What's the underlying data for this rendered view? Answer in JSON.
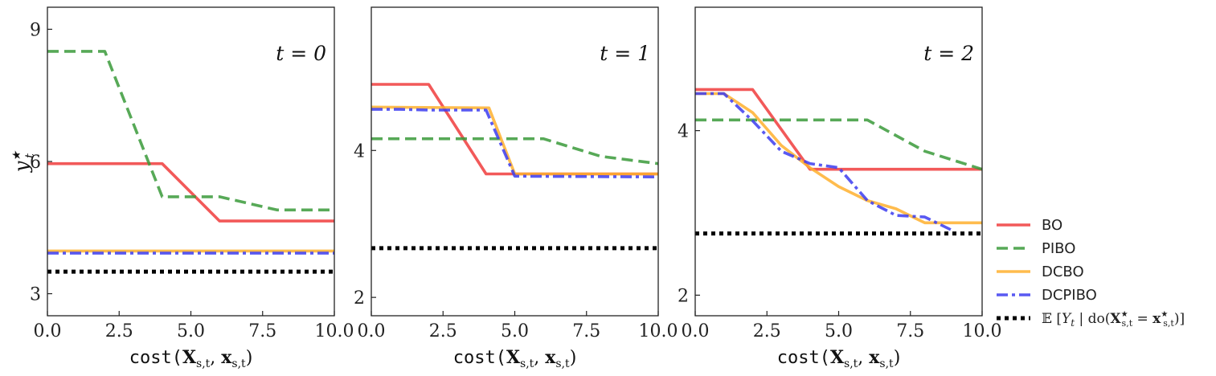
{
  "chart_data": [
    {
      "type": "line",
      "panel_label": "t = 0",
      "ylabel": "y*_t",
      "xlabel": "cost(X_{s,t}, x_{s,t})",
      "xlim": [
        0,
        10
      ],
      "ylim": [
        2.5,
        9.5
      ],
      "xticks": [
        "0.0",
        "2.5",
        "5.0",
        "7.5",
        "10.0"
      ],
      "yticks": [
        "3",
        "6",
        "9"
      ],
      "ytick_values": [
        3,
        6,
        9
      ],
      "series": [
        {
          "name": "BO",
          "points": [
            [
              0,
              5.95
            ],
            [
              4,
              5.95
            ],
            [
              6,
              4.65
            ],
            [
              10,
              4.65
            ]
          ]
        },
        {
          "name": "PIBO",
          "points": [
            [
              0,
              8.5
            ],
            [
              2,
              8.5
            ],
            [
              4,
              5.2
            ],
            [
              6,
              5.2
            ],
            [
              8,
              4.9
            ],
            [
              10,
              4.9
            ]
          ]
        },
        {
          "name": "DCBO",
          "points": [
            [
              0,
              3.97
            ],
            [
              10,
              3.97
            ]
          ]
        },
        {
          "name": "DCPIBO",
          "points": [
            [
              0,
              3.92
            ],
            [
              10,
              3.92
            ]
          ]
        },
        {
          "name": "E[Y_t | do(X*_{s,t} = x*_{s,t})]",
          "points": [
            [
              0,
              3.5
            ],
            [
              10,
              3.5
            ]
          ]
        }
      ]
    },
    {
      "type": "line",
      "panel_label": "t = 1",
      "ylabel": "",
      "xlabel": "cost(X_{s,t}, x_{s,t})",
      "xlim": [
        0,
        10
      ],
      "ylim": [
        1.75,
        5.95
      ],
      "xticks": [
        "0.0",
        "2.5",
        "5.0",
        "7.5",
        "10.0"
      ],
      "yticks": [
        "2",
        "4"
      ],
      "ytick_values": [
        2,
        4
      ],
      "series": [
        {
          "name": "BO",
          "points": [
            [
              0,
              4.9
            ],
            [
              2,
              4.9
            ],
            [
              4,
              3.68
            ],
            [
              10,
              3.68
            ]
          ]
        },
        {
          "name": "PIBO",
          "points": [
            [
              0,
              4.16
            ],
            [
              6,
              4.16
            ],
            [
              8,
              3.92
            ],
            [
              10,
              3.82
            ]
          ]
        },
        {
          "name": "DCBO",
          "points": [
            [
              0,
              4.59
            ],
            [
              4.1,
              4.58
            ],
            [
              5,
              3.68
            ],
            [
              10,
              3.68
            ]
          ]
        },
        {
          "name": "DCPIBO",
          "points": [
            [
              0,
              4.56
            ],
            [
              1,
              4.56
            ],
            [
              2,
              4.55
            ],
            [
              4,
              4.55
            ],
            [
              5,
              3.65
            ],
            [
              10,
              3.64
            ]
          ]
        },
        {
          "name": "E[Y_t | do(X*_{s,t} = x*_{s,t})]",
          "points": [
            [
              0,
              2.67
            ],
            [
              10,
              2.67
            ]
          ]
        }
      ]
    },
    {
      "type": "line",
      "panel_label": "t = 2",
      "ylabel": "",
      "xlabel": "cost(X_{s,t}, x_{s,t})",
      "xlim": [
        0,
        10
      ],
      "ylim": [
        1.75,
        5.5
      ],
      "xticks": [
        "0.0",
        "2.5",
        "5.0",
        "7.5",
        "10.0"
      ],
      "yticks": [
        "2",
        "4"
      ],
      "ytick_values": [
        2,
        4
      ],
      "series": [
        {
          "name": "BO",
          "points": [
            [
              0,
              4.5
            ],
            [
              2,
              4.5
            ],
            [
              4,
              3.53
            ],
            [
              10,
              3.53
            ]
          ]
        },
        {
          "name": "PIBO",
          "points": [
            [
              0,
              4.13
            ],
            [
              6,
              4.13
            ],
            [
              8,
              3.75
            ],
            [
              10,
              3.53
            ]
          ]
        },
        {
          "name": "DCBO",
          "points": [
            [
              0,
              4.45
            ],
            [
              1,
              4.45
            ],
            [
              2,
              4.22
            ],
            [
              3,
              3.82
            ],
            [
              4,
              3.55
            ],
            [
              5,
              3.32
            ],
            [
              6,
              3.15
            ],
            [
              7,
              3.05
            ],
            [
              8,
              2.88
            ],
            [
              10,
              2.88
            ]
          ]
        },
        {
          "name": "DCPIBO",
          "points": [
            [
              0,
              4.45
            ],
            [
              1,
              4.45
            ],
            [
              2,
              4.12
            ],
            [
              3,
              3.75
            ],
            [
              4,
              3.6
            ],
            [
              5,
              3.55
            ],
            [
              6,
              3.15
            ],
            [
              7,
              2.97
            ],
            [
              8,
              2.95
            ],
            [
              9,
              2.78
            ]
          ]
        },
        {
          "name": "E[Y_t | do(X*_{s,t} = x*_{s,t})]",
          "points": [
            [
              0,
              2.75
            ],
            [
              10,
              2.75
            ]
          ]
        }
      ]
    }
  ],
  "styles": {
    "BO": {
      "color": "#f03c3c",
      "dash": "solid"
    },
    "PIBO": {
      "color": "#3a9a3a",
      "dash": "dashed"
    },
    "DCBO": {
      "color": "#ffb02e",
      "dash": "solid"
    },
    "DCPIBO": {
      "color": "#3c3cf0",
      "dash": "dashdot"
    },
    "E[Y_t | do(X*_{s,t} = x*_{s,t})]": {
      "color": "#000000",
      "dash": "dotted"
    }
  },
  "legend": {
    "placement": "right",
    "entries": [
      "BO",
      "PIBO",
      "DCBO",
      "DCPIBO",
      "E[Y_t | do(X*_{s,t} = x*_{s,t})]"
    ]
  }
}
